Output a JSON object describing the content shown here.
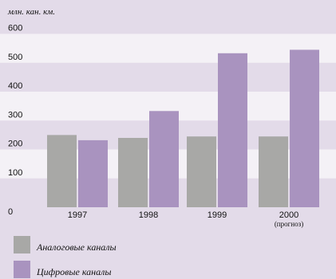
{
  "chart_data": {
    "type": "bar",
    "unit": "млн. кан. км.",
    "categories": [
      "1997",
      "1998",
      "1999",
      "2000"
    ],
    "category_notes": [
      "",
      "",
      "",
      "(прогноз)"
    ],
    "series": [
      {
        "name": "Аналоговые каналы",
        "values": [
          250,
          240,
          245,
          245
        ],
        "color": "#a8a8a6"
      },
      {
        "name": "Цифровые каналы",
        "values": [
          232,
          333,
          533,
          545
        ],
        "color": "#a993bf"
      }
    ],
    "ylim": [
      0,
      640
    ],
    "yticks": [
      0,
      100,
      200,
      300,
      400,
      500,
      600
    ],
    "band_colors": [
      "#e3dbe9",
      "#f4f1f6"
    ],
    "grid": false,
    "legend": "bottom-left"
  }
}
